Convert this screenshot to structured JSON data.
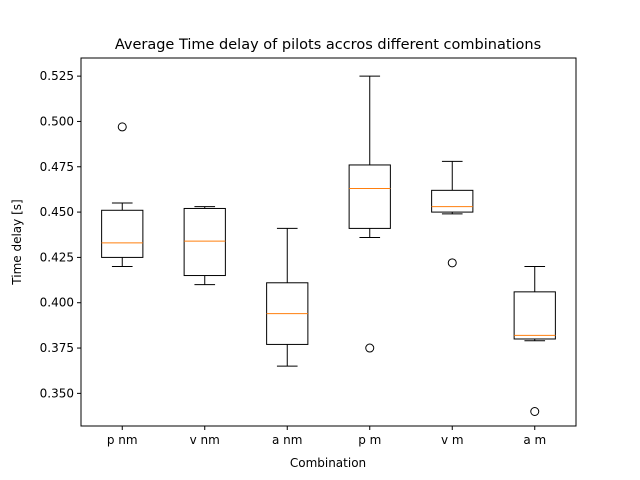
{
  "chart_data": {
    "type": "box",
    "title": "Average Time delay of pilots accros different combinations",
    "xlabel": "Combination",
    "ylabel": "Time delay [s]",
    "ylim": [
      0.332,
      0.535
    ],
    "yticks": [
      0.35,
      0.375,
      0.4,
      0.425,
      0.45,
      0.475,
      0.5,
      0.525
    ],
    "ytick_labels": [
      "0.350",
      "0.375",
      "0.400",
      "0.425",
      "0.450",
      "0.475",
      "0.500",
      "0.525"
    ],
    "grid": false,
    "categories": [
      "p nm",
      "v nm",
      "a nm",
      "p m",
      "v m",
      "a m"
    ],
    "boxes": [
      {
        "whisker_low": 0.42,
        "q1": 0.425,
        "median": 0.433,
        "q3": 0.451,
        "whisker_high": 0.455,
        "outliers": [
          0.497
        ]
      },
      {
        "whisker_low": 0.41,
        "q1": 0.415,
        "median": 0.434,
        "q3": 0.452,
        "whisker_high": 0.453,
        "outliers": []
      },
      {
        "whisker_low": 0.365,
        "q1": 0.377,
        "median": 0.394,
        "q3": 0.411,
        "whisker_high": 0.441,
        "outliers": []
      },
      {
        "whisker_low": 0.436,
        "q1": 0.441,
        "median": 0.463,
        "q3": 0.476,
        "whisker_high": 0.525,
        "outliers": [
          0.375
        ]
      },
      {
        "whisker_low": 0.449,
        "q1": 0.45,
        "median": 0.453,
        "q3": 0.462,
        "whisker_high": 0.478,
        "outliers": [
          0.422
        ]
      },
      {
        "whisker_low": 0.379,
        "q1": 0.38,
        "median": 0.382,
        "q3": 0.406,
        "whisker_high": 0.42,
        "outliers": [
          0.34
        ]
      }
    ],
    "colors": {
      "box": "#000000",
      "median": "#ff7f0e",
      "outlier_edge": "#000000"
    }
  }
}
